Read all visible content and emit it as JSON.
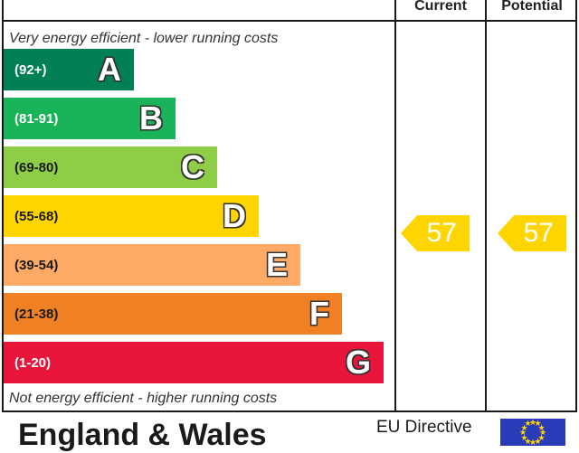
{
  "columns": {
    "current": "Current",
    "potential": "Potential"
  },
  "captions": {
    "top": "Very energy efficient - lower running costs",
    "bottom": "Not energy efficient - higher running costs"
  },
  "bands": [
    {
      "range": "(92+)",
      "letter": "A",
      "color": "#008054",
      "text_color": "#ffffff"
    },
    {
      "range": "(81-91)",
      "letter": "B",
      "color": "#19b459",
      "text_color": "#ffffff"
    },
    {
      "range": "(69-80)",
      "letter": "C",
      "color": "#8dce46",
      "text_color": "#1a1a1a"
    },
    {
      "range": "(55-68)",
      "letter": "D",
      "color": "#ffd500",
      "text_color": "#1a1a1a"
    },
    {
      "range": "(39-54)",
      "letter": "E",
      "color": "#fcaa65",
      "text_color": "#1a1a1a"
    },
    {
      "range": "(21-38)",
      "letter": "F",
      "color": "#ef8023",
      "text_color": "#1a1a1a"
    },
    {
      "range": "(1-20)",
      "letter": "G",
      "color": "#e9153b",
      "text_color": "#ffffff"
    }
  ],
  "ratings": {
    "current": {
      "value": "57",
      "band": "D"
    },
    "potential": {
      "value": "57",
      "band": "D"
    },
    "arrow_color": "#ffd500"
  },
  "footer": {
    "title": "England & Wales",
    "directive": "EU Directive",
    "flag_icon": "eu-flag-icon"
  }
}
